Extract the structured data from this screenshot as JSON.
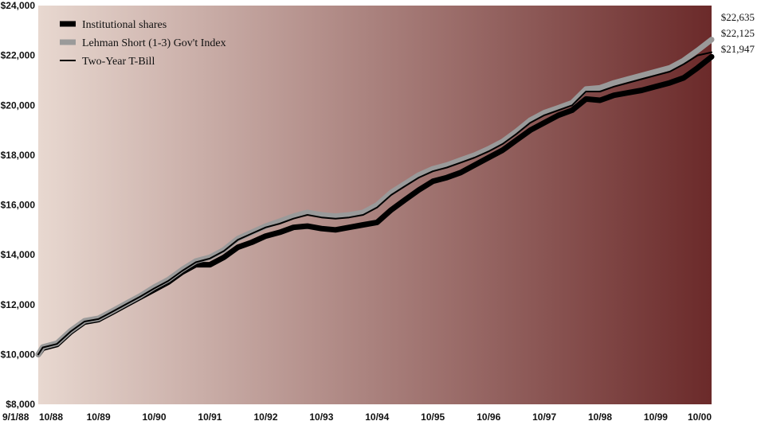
{
  "chart_data": {
    "type": "line",
    "title": "",
    "xlabel": "",
    "ylabel": "",
    "ylim": [
      8000,
      24000
    ],
    "y_ticks": [
      "$8,000",
      "$10,000",
      "$12,000",
      "$14,000",
      "$16,000",
      "$18,000",
      "$20,000",
      "$22,000",
      "$24,000"
    ],
    "y_tick_values": [
      8000,
      10000,
      12000,
      14000,
      16000,
      18000,
      20000,
      22000,
      24000
    ],
    "x_ticks": [
      "9/1/88",
      "10/88",
      "10/89",
      "10/90",
      "10/91",
      "10/92",
      "10/93",
      "10/94",
      "10/95",
      "10/96",
      "10/97",
      "10/98",
      "10/99",
      "10/00"
    ],
    "x_tick_dates": [
      "1988-09-01",
      "1988-10-01",
      "1989-10-01",
      "1990-10-01",
      "1991-10-01",
      "1992-10-01",
      "1993-10-01",
      "1994-10-01",
      "1995-10-01",
      "1996-10-01",
      "1997-10-01",
      "1998-10-01",
      "1999-10-01",
      "2000-10-01"
    ],
    "grid": false,
    "legend_position": "top-left",
    "background_gradient": [
      "#e8d8d0",
      "#6b2a2a"
    ],
    "x": [
      "1988-09-01",
      "1988-10-01",
      "1989-01-01",
      "1989-04-01",
      "1989-07-01",
      "1989-10-01",
      "1990-01-01",
      "1990-04-01",
      "1990-07-01",
      "1990-10-01",
      "1991-01-01",
      "1991-04-01",
      "1991-07-01",
      "1991-10-01",
      "1992-01-01",
      "1992-04-01",
      "1992-07-01",
      "1992-10-01",
      "1993-01-01",
      "1993-04-01",
      "1993-07-01",
      "1993-10-01",
      "1994-01-01",
      "1994-04-01",
      "1994-07-01",
      "1994-10-01",
      "1995-01-01",
      "1995-04-01",
      "1995-07-01",
      "1995-10-01",
      "1996-01-01",
      "1996-04-01",
      "1996-07-01",
      "1996-10-01",
      "1997-01-01",
      "1997-04-01",
      "1997-07-01",
      "1997-10-01",
      "1998-01-01",
      "1998-04-01",
      "1998-07-01",
      "1998-10-01",
      "1999-01-01",
      "1999-04-01",
      "1999-07-01",
      "1999-10-01",
      "2000-01-01",
      "2000-04-01",
      "2000-07-01",
      "2000-10-01"
    ],
    "series": [
      {
        "name": "Institutional shares",
        "color": "#000000",
        "style": "thick",
        "values": [
          10000,
          10250,
          10400,
          10900,
          11300,
          11400,
          11700,
          12000,
          12300,
          12600,
          12900,
          13300,
          13600,
          13600,
          13900,
          14300,
          14500,
          14750,
          14900,
          15100,
          15150,
          15050,
          15000,
          15100,
          15200,
          15300,
          15800,
          16200,
          16600,
          16950,
          17100,
          17300,
          17600,
          17900,
          18200,
          18600,
          19000,
          19300,
          19600,
          19800,
          20250,
          20200,
          20400,
          20500,
          20600,
          20750,
          20900,
          21100,
          21500,
          21947
        ]
      },
      {
        "name": "Lehman Short (1-3) Gov't Index",
        "color": "#9a9a9a",
        "style": "thick",
        "values": [
          10000,
          10300,
          10450,
          10950,
          11350,
          11450,
          11750,
          12050,
          12350,
          12700,
          13000,
          13400,
          13750,
          13900,
          14200,
          14650,
          14900,
          15150,
          15350,
          15550,
          15700,
          15600,
          15550,
          15600,
          15700,
          16000,
          16500,
          16850,
          17200,
          17450,
          17600,
          17800,
          18000,
          18250,
          18550,
          18950,
          19400,
          19700,
          19900,
          20100,
          20650,
          20700,
          20900,
          21050,
          21200,
          21350,
          21500,
          21800,
          22200,
          22635
        ]
      },
      {
        "name": "Two-Year T-Bill",
        "color": "#000000",
        "style": "thin",
        "values": [
          10000,
          10280,
          10420,
          10920,
          11320,
          11420,
          11720,
          12020,
          12320,
          12650,
          12950,
          13350,
          13700,
          13850,
          14150,
          14600,
          14850,
          15100,
          15250,
          15450,
          15600,
          15500,
          15450,
          15500,
          15600,
          15900,
          16400,
          16750,
          17100,
          17350,
          17500,
          17700,
          17900,
          18150,
          18450,
          18850,
          19300,
          19600,
          19800,
          20000,
          20550,
          20550,
          20750,
          20900,
          21050,
          21200,
          21350,
          21650,
          22000,
          22125
        ]
      }
    ],
    "end_labels": [
      "$22,635",
      "$22,125",
      "$21,947"
    ]
  }
}
